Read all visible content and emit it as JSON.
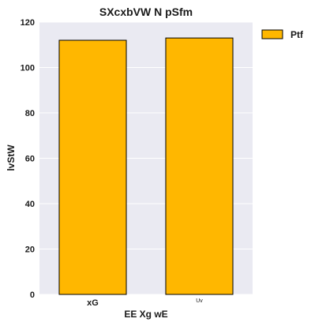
{
  "chart_data": {
    "type": "bar",
    "title": "SXcxbVW N pSfm",
    "xlabel": "EE Xg  wE",
    "ylabel": "lvStW",
    "categories": [
      "xG",
      "Uv"
    ],
    "series": [
      {
        "name": "Ptf",
        "values": [
          112,
          113
        ]
      }
    ],
    "ylim": [
      0,
      120
    ],
    "yticks": [
      0,
      20,
      40,
      60,
      80,
      100,
      120
    ],
    "grid": true,
    "legend_position": "top-right outside",
    "colors": {
      "bar_fill": "#FFB700",
      "bar_edge": "#000000",
      "plot_background": "#EAEAF2",
      "grid": "#FFFFFF"
    }
  }
}
